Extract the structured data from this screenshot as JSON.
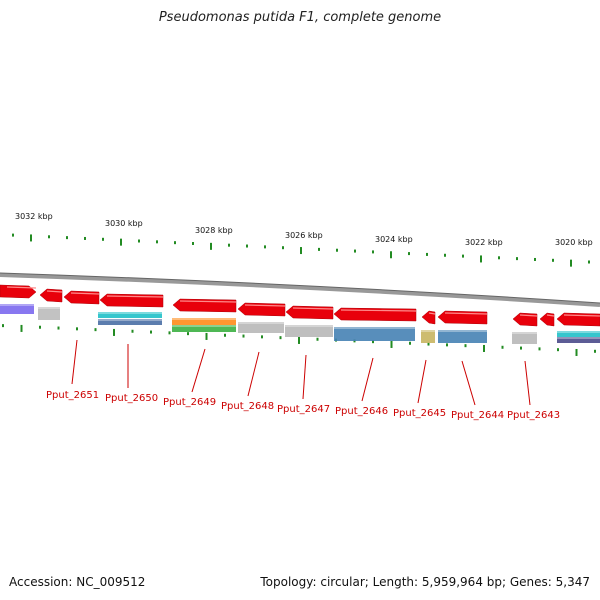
{
  "title": "Pseudomonas putida F1, complete genome",
  "footer": {
    "accession": "Accession: NC_009512",
    "summary": "Topology: circular; Length: 5,959,964 bp; Genes: 5,347"
  },
  "colors": {
    "gene_red": "#e8000b",
    "label_red": "#cc0000",
    "tick_green": "#228b22",
    "backbone": "#888888"
  },
  "scale_labels": [
    "3032 kbp",
    "3030 kbp",
    "3028 kbp",
    "3026 kbp",
    "3024 kbp",
    "3022 kbp",
    "3020 kbp"
  ],
  "gene_labels": [
    "Pput_2651",
    "Pput_2650",
    "Pput_2649",
    "Pput_2648",
    "Pput_2647",
    "Pput_2646",
    "Pput_2645",
    "Pput_2644",
    "Pput_2643"
  ]
}
